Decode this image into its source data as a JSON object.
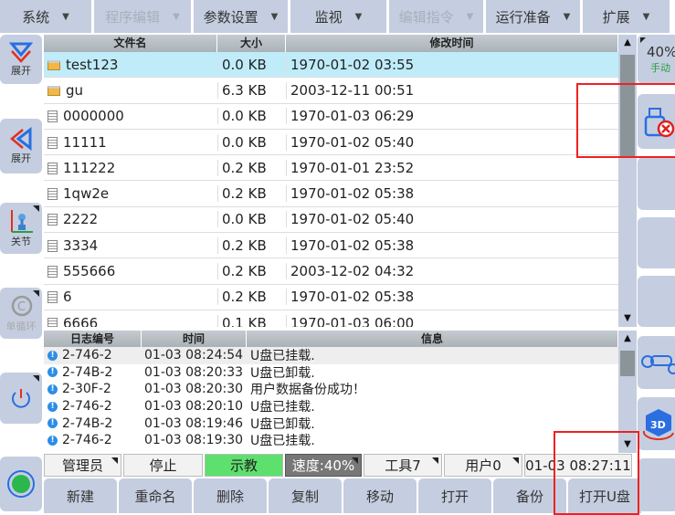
{
  "menu": [
    {
      "label": "系统",
      "enabled": true
    },
    {
      "label": "程序编辑",
      "enabled": false
    },
    {
      "label": "参数设置",
      "enabled": true
    },
    {
      "label": "监视",
      "enabled": true
    },
    {
      "label": "编辑指令",
      "enabled": false
    },
    {
      "label": "运行准备",
      "enabled": true
    },
    {
      "label": "扩展",
      "enabled": true
    }
  ],
  "left": {
    "expand1": "展开",
    "expand2": "展开",
    "joint": "关节",
    "cycle": "单循环"
  },
  "right": {
    "speed": "40%",
    "mode": "手动"
  },
  "files": {
    "headers": [
      "文件名",
      "大小",
      "修改时间"
    ],
    "rows": [
      {
        "name": "test123",
        "size": "0.0 KB",
        "time": "1970-01-02 03:55",
        "type": "folder",
        "selected": true
      },
      {
        "name": "gu",
        "size": "6.3 KB",
        "time": "2003-12-11 00:51",
        "type": "folder"
      },
      {
        "name": "0000000",
        "size": "0.0 KB",
        "time": "1970-01-03 06:29",
        "type": "file"
      },
      {
        "name": "11111",
        "size": "0.0 KB",
        "time": "1970-01-02 05:40",
        "type": "file"
      },
      {
        "name": "111222",
        "size": "0.2 KB",
        "time": "1970-01-01 23:52",
        "type": "file"
      },
      {
        "name": "1qw2e",
        "size": "0.2 KB",
        "time": "1970-01-02 05:38",
        "type": "file"
      },
      {
        "name": "2222",
        "size": "0.0 KB",
        "time": "1970-01-02 05:40",
        "type": "file"
      },
      {
        "name": "3334",
        "size": "0.2 KB",
        "time": "1970-01-02 05:38",
        "type": "file"
      },
      {
        "name": "555666",
        "size": "0.2 KB",
        "time": "2003-12-02 04:32",
        "type": "file"
      },
      {
        "name": "6",
        "size": "0.2 KB",
        "time": "1970-01-02 05:38",
        "type": "file"
      },
      {
        "name": "6666",
        "size": "0.1 KB",
        "time": "1970-01-03 06:00",
        "type": "file"
      }
    ]
  },
  "log": {
    "headers": [
      "日志编号",
      "时间",
      "信息"
    ],
    "rows": [
      {
        "id": "2-746-2",
        "time": "01-03 08:24:54",
        "msg": "U盘已挂载."
      },
      {
        "id": "2-74B-2",
        "time": "01-03 08:20:33",
        "msg": "U盘已卸载."
      },
      {
        "id": "2-30F-2",
        "time": "01-03 08:20:30",
        "msg": "用户数据备份成功！"
      },
      {
        "id": "2-746-2",
        "time": "01-03 08:20:10",
        "msg": "U盘已挂载."
      },
      {
        "id": "2-74B-2",
        "time": "01-03 08:19:46",
        "msg": "U盘已卸载."
      },
      {
        "id": "2-746-2",
        "time": "01-03 08:19:30",
        "msg": "U盘已挂载."
      }
    ]
  },
  "status": {
    "user": "管理员",
    "state": "停止",
    "mode": "示教",
    "speed": "速度:40%",
    "tool": "工具7",
    "userframe": "用户0",
    "clock": "01-03 08:27:11"
  },
  "buttons": [
    "新建",
    "重命名",
    "删除",
    "复制",
    "移动",
    "打开",
    "备份",
    "打开U盘"
  ],
  "colors": {
    "panel": "#c5cee0",
    "selected_row": "#c0ecfa",
    "teach_mode": "#5ee06e",
    "speed_bg": "#777777",
    "annotation": "#f02020"
  }
}
